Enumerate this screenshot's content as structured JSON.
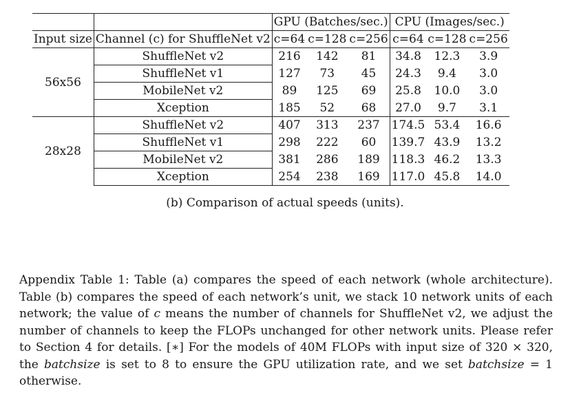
{
  "table": {
    "group_headers": [
      "GPU (Batches/sec.)",
      "CPU (Images/sec.)"
    ],
    "col_headers": [
      "Input size",
      "Channel (c) for ShuffleNet v2",
      "c=64",
      "c=128",
      "c=256",
      "c=64",
      "c=128",
      "c=256"
    ],
    "groups": [
      {
        "input_size": "56x56",
        "rows": [
          {
            "network": "ShuffleNet v2",
            "gpu": [
              "216",
              "142",
              "81"
            ],
            "cpu": [
              "34.8",
              "12.3",
              "3.9"
            ]
          },
          {
            "network": "ShuffleNet v1",
            "gpu": [
              "127",
              "73",
              "45"
            ],
            "cpu": [
              "24.3",
              "9.4",
              "3.0"
            ]
          },
          {
            "network": "MobileNet v2",
            "gpu": [
              "89",
              "125",
              "69"
            ],
            "cpu": [
              "25.8",
              "10.0",
              "3.0"
            ]
          },
          {
            "network": "Xception",
            "gpu": [
              "185",
              "52",
              "68"
            ],
            "cpu": [
              "27.0",
              "9.7",
              "3.1"
            ]
          }
        ]
      },
      {
        "input_size": "28x28",
        "rows": [
          {
            "network": "ShuffleNet v2",
            "gpu": [
              "407",
              "313",
              "237"
            ],
            "cpu": [
              "174.5",
              "53.4",
              "16.6"
            ]
          },
          {
            "network": "ShuffleNet v1",
            "gpu": [
              "298",
              "222",
              "60"
            ],
            "cpu": [
              "139.7",
              "43.9",
              "13.2"
            ]
          },
          {
            "network": "MobileNet v2",
            "gpu": [
              "381",
              "286",
              "189"
            ],
            "cpu": [
              "118.3",
              "46.2",
              "13.3"
            ]
          },
          {
            "network": "Xception",
            "gpu": [
              "254",
              "238",
              "169"
            ],
            "cpu": [
              "117.0",
              "45.8",
              "14.0"
            ]
          }
        ]
      }
    ]
  },
  "caption_b": "(b) Comparison of actual speeds (units).",
  "appendix": {
    "p1": "Appendix Table 1: Table (a) compares the speed of each network (whole architecture). Table (b) compares the speed of each network’s unit, we stack 10 network units of each network; the value of ",
    "c_var": "c",
    "p2": " means the number of channels for ShuffleNet v2, we adjust the number of channels to keep the FLOPs unchanged for other network units. Please refer to Section 4 for details. [∗] For the models of 40M FLOPs with input size of 320 × 320, the ",
    "batchsize_var_1": "batchsize",
    "p3": " is set to 8 to ensure the GPU utilization rate, and we set ",
    "batchsize_var_2": "batchsize",
    "p4": " = 1 otherwise."
  }
}
